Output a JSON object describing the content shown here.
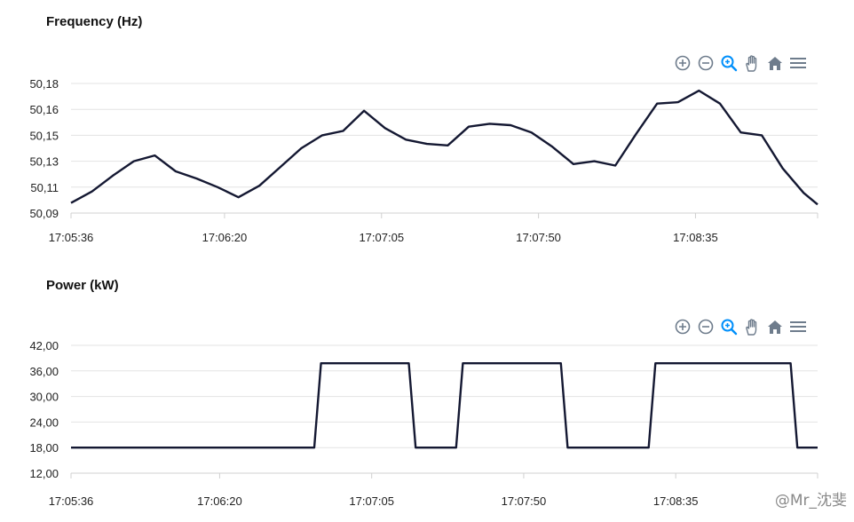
{
  "charts": {
    "frequency": {
      "title": "Frequency (Hz)"
    },
    "power": {
      "title": "Power (kW)"
    }
  },
  "toolbar_icons": [
    "zoom-in-icon",
    "zoom-out-icon",
    "selection-zoom-icon",
    "pan-icon",
    "reset-zoom-icon",
    "menu-icon"
  ],
  "watermark": "@Mr_沈斐",
  "colors": {
    "line": "#141832",
    "grid": "#e3e3e3",
    "icon": "#6e7c8c",
    "icon_active": "#008ffb"
  },
  "chart_data": [
    {
      "type": "line",
      "title": "Frequency (Hz)",
      "x_ticks": [
        "17:05:36",
        "17:06:20",
        "17:07:05",
        "17:07:50",
        "17:08:35"
      ],
      "y_ticks": [
        "50,18",
        "50,16",
        "50,15",
        "50,13",
        "50,11",
        "50,09"
      ],
      "ylim": [
        50.09,
        50.18
      ],
      "grid": true,
      "series": [
        {
          "x": [
            "17:05:36",
            "17:05:42",
            "17:05:48",
            "17:05:54",
            "17:06:00",
            "17:06:06",
            "17:06:12",
            "17:06:18",
            "17:06:24",
            "17:06:30",
            "17:06:36",
            "17:06:42",
            "17:06:48",
            "17:06:54",
            "17:07:00",
            "17:07:06",
            "17:07:12",
            "17:07:18",
            "17:07:24",
            "17:07:30",
            "17:07:36",
            "17:07:42",
            "17:07:48",
            "17:07:54",
            "17:08:00",
            "17:08:06",
            "17:08:12",
            "17:08:18",
            "17:08:24",
            "17:08:30",
            "17:08:36",
            "17:08:42",
            "17:08:48",
            "17:08:54",
            "17:09:00",
            "17:09:06",
            "17:09:10"
          ],
          "y": [
            50.097,
            50.105,
            50.116,
            50.126,
            50.13,
            50.119,
            50.114,
            50.108,
            50.101,
            50.109,
            50.122,
            50.135,
            50.144,
            50.147,
            50.161,
            50.149,
            50.141,
            50.138,
            50.137,
            50.15,
            50.152,
            50.151,
            50.146,
            50.136,
            50.124,
            50.126,
            50.123,
            50.145,
            50.166,
            50.167,
            50.175,
            50.166,
            50.146,
            50.144,
            50.121,
            50.104,
            50.096
          ]
        }
      ]
    },
    {
      "type": "line",
      "title": "Power (kW)",
      "x_ticks": [
        "17:05:36",
        "17:06:20",
        "17:07:05",
        "17:07:50",
        "17:08:35"
      ],
      "y_ticks": [
        "42,00",
        "36,00",
        "30,00",
        "24,00",
        "18,00",
        "12,00"
      ],
      "ylim": [
        12,
        42
      ],
      "grid": true,
      "series": [
        {
          "x": [
            "17:05:36",
            "17:06:48",
            "17:06:50",
            "17:07:16",
            "17:07:18",
            "17:07:30",
            "17:07:32",
            "17:08:01",
            "17:08:03",
            "17:08:27",
            "17:08:29",
            "17:09:09",
            "17:09:11",
            "17:09:17"
          ],
          "y": [
            18,
            18,
            37.8,
            37.8,
            18,
            18,
            37.8,
            37.8,
            18,
            18,
            37.8,
            37.8,
            18,
            18
          ]
        }
      ]
    }
  ]
}
